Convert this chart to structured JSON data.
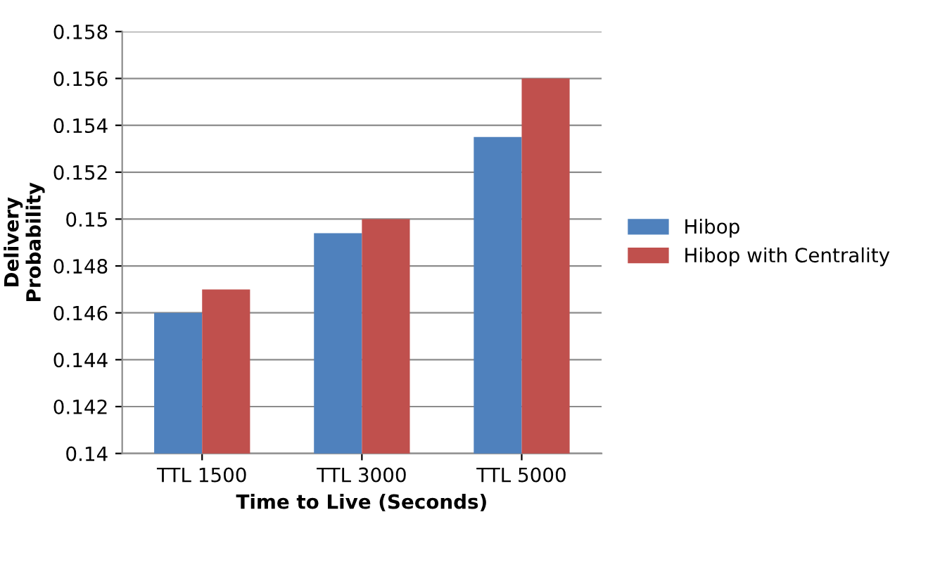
{
  "chart_data": {
    "type": "bar",
    "xlabel": "Time to Live (Seconds)",
    "ylabel": "Delivery\nProbability",
    "categories": [
      "TTL 1500",
      "TTL 3000",
      "TTL 5000"
    ],
    "series": [
      {
        "name": "Hibop",
        "color": "#4f81bd",
        "values": [
          0.146,
          0.1494,
          0.1535
        ]
      },
      {
        "name": "Hibop with Centrality",
        "color": "#c0504d",
        "values": [
          0.147,
          0.15,
          0.156
        ]
      }
    ],
    "ylim": [
      0.14,
      0.158
    ],
    "yticks": [
      0.14,
      0.142,
      0.144,
      0.146,
      0.148,
      0.15,
      0.152,
      0.154,
      0.156,
      0.158
    ],
    "grid": "y",
    "legend": "right"
  }
}
